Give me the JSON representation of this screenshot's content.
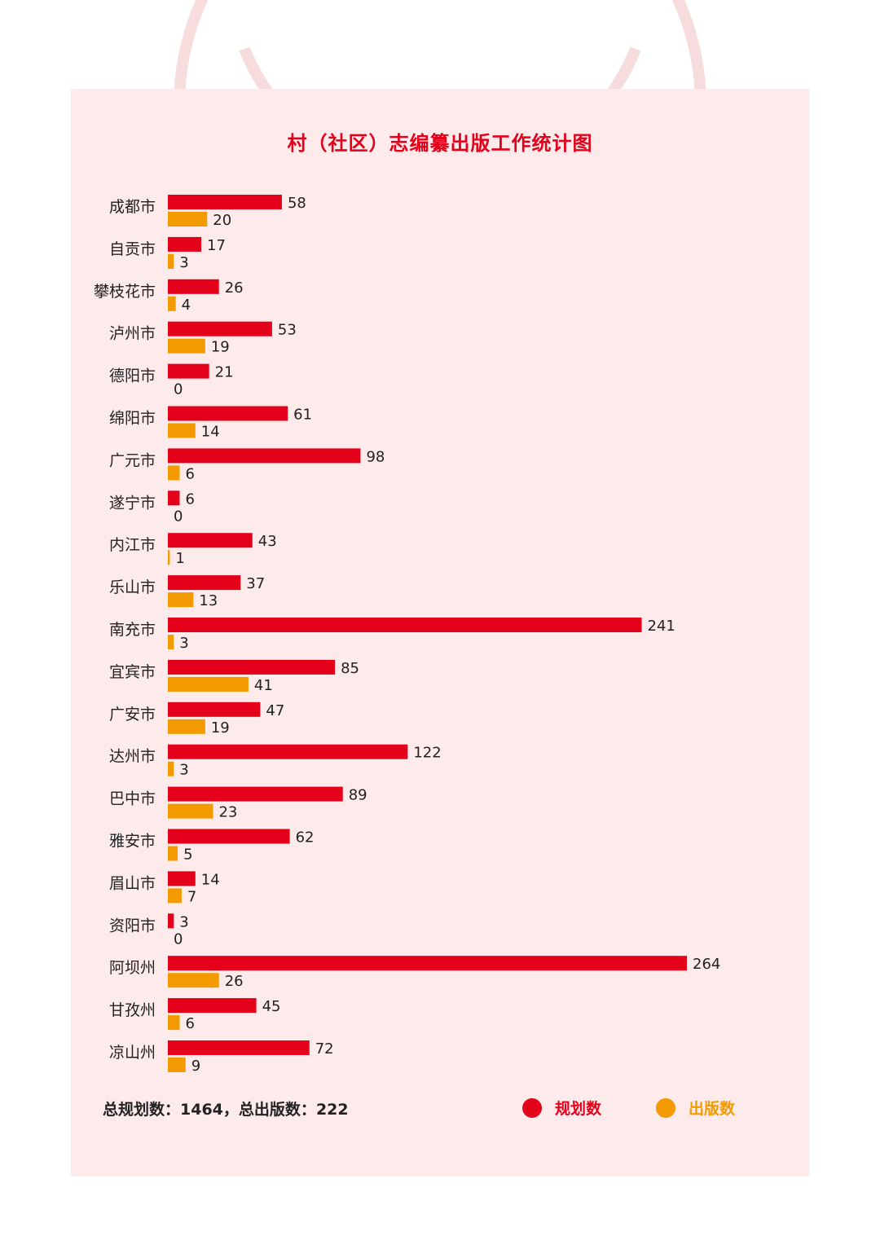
{
  "colors": {
    "planned": "#e3001b",
    "published": "#f29a00",
    "panel_bg": "#fdeaea",
    "title": "#e3001b"
  },
  "chart_data": {
    "type": "bar",
    "orientation": "horizontal",
    "title": "村（社区）志编纂出版工作统计图",
    "categories": [
      "成都市",
      "自贡市",
      "攀枝花市",
      "泸州市",
      "德阳市",
      "绵阳市",
      "广元市",
      "遂宁市",
      "内江市",
      "乐山市",
      "南充市",
      "宜宾市",
      "广安市",
      "达州市",
      "巴中市",
      "雅安市",
      "眉山市",
      "资阳市",
      "阿坝州",
      "甘孜州",
      "凉山州"
    ],
    "series": [
      {
        "name": "规划数",
        "color": "#e3001b",
        "values": [
          58,
          17,
          26,
          53,
          21,
          61,
          98,
          6,
          43,
          37,
          241,
          85,
          47,
          122,
          89,
          62,
          14,
          3,
          264,
          45,
          72
        ]
      },
      {
        "name": "出版数",
        "color": "#f29a00",
        "values": [
          20,
          3,
          4,
          19,
          0,
          14,
          6,
          0,
          1,
          13,
          3,
          41,
          19,
          3,
          23,
          5,
          7,
          0,
          26,
          6,
          9
        ]
      }
    ],
    "xlim": [
      0,
      264
    ],
    "grid": false,
    "data_labels": true,
    "legend_placement": "bottom-right"
  },
  "summary": {
    "planned_label": "总规划数：",
    "planned_total": "1464",
    "separator": "，",
    "published_label": "总出版数：",
    "published_total": "222"
  },
  "legend": {
    "planned": "规划数",
    "published": "出版数"
  }
}
